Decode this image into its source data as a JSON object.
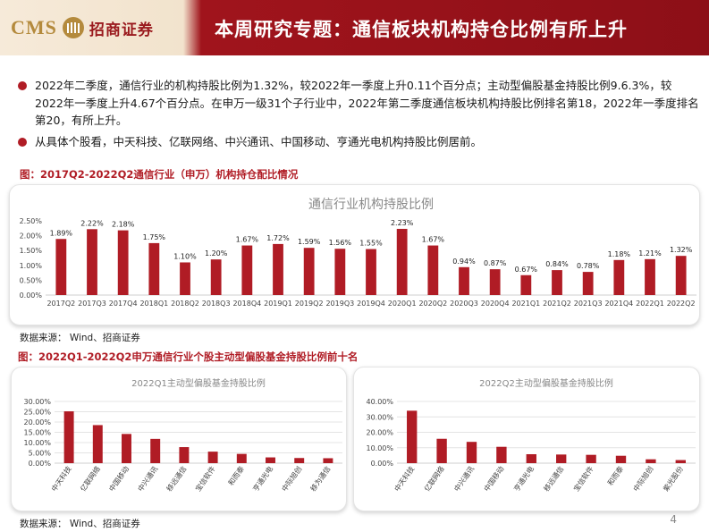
{
  "header": {
    "logo_text": "CMS",
    "logo_cn": "招商证券",
    "title": "本周研究专题：通信板块机构持仓比例有所上升"
  },
  "bullets": [
    "2022年二季度，通信行业的机构持股比例为1.32%，较2022年一季度上升0.11个百分点；主动型偏股基金持股比例9.6.3%，较2022年一季度上升4.67个百分点。在申万一级31个子行业中，2022年第二季度通信板块机构持股比例排名第18，2022年一季度排名第20，有所上升。",
    "从具体个股看，中天科技、亿联网络、中兴通讯、中国移动、亨通光电机构持股比例居前。"
  ],
  "figure1": {
    "caption": "图：2017Q2-2022Q2通信行业（申万）机构持仓配比情况",
    "source": "数据来源： Wind、招商证券"
  },
  "figure2": {
    "caption": "图：2022Q1-2022Q2申万通信行业个股主动型偏股基金持股比例前十名",
    "source": "数据来源： Wind、招商证券"
  },
  "page_number": "4",
  "colors": {
    "accent": "#b01c25",
    "header_red": "#8d0f17",
    "gold": "#b48a3c"
  },
  "chart_data": [
    {
      "type": "bar",
      "title": "通信行业机构持股比例",
      "categories": [
        "2017Q2",
        "2017Q3",
        "2017Q4",
        "2018Q1",
        "2018Q2",
        "2018Q3",
        "2018Q4",
        "2019Q1",
        "2019Q2",
        "2019Q3",
        "2019Q4",
        "2020Q1",
        "2020Q2",
        "2020Q3",
        "2020Q4",
        "2021Q1",
        "2021Q2",
        "2021Q3",
        "2021Q4",
        "2022Q1",
        "2022Q2"
      ],
      "values": [
        1.89,
        2.22,
        2.18,
        1.75,
        1.1,
        1.2,
        1.67,
        1.72,
        1.59,
        1.56,
        1.55,
        2.23,
        1.67,
        0.94,
        0.87,
        0.67,
        0.84,
        0.78,
        1.18,
        1.21,
        1.32
      ],
      "data_labels": [
        "1.89%",
        "2.22%",
        "2.18%",
        "1.75%",
        "1.10%",
        "1.20%",
        "1.67%",
        "1.72%",
        "1.59%",
        "1.56%",
        "1.55%",
        "2.23%",
        "1.67%",
        "0.94%",
        "0.87%",
        "0.67%",
        "0.84%",
        "0.78%",
        "1.18%",
        "1.21%",
        "1.32%"
      ],
      "y_ticks": [
        "0.00%",
        "0.50%",
        "1.00%",
        "1.50%",
        "2.00%",
        "2.50%"
      ],
      "ylim": [
        0,
        2.5
      ],
      "grid": false
    },
    {
      "type": "bar",
      "title": "2022Q1主动型偏股基金持股比例",
      "categories": [
        "中天科技",
        "亿联网络",
        "中国移动",
        "中兴通讯",
        "移远通信",
        "宝信软件",
        "和而泰",
        "亨通光电",
        "中际旭创",
        "移为通信"
      ],
      "values": [
        25.2,
        18.5,
        14.2,
        11.8,
        7.8,
        5.6,
        4.5,
        2.8,
        2.5,
        2.4
      ],
      "y_ticks": [
        "0.00%",
        "5.00%",
        "10.00%",
        "15.00%",
        "20.00%",
        "25.00%",
        "30.00%"
      ],
      "ylim": [
        0,
        30
      ],
      "grid": true
    },
    {
      "type": "bar",
      "title": "2022Q2主动型偏股基金持股比例",
      "categories": [
        "中天科技",
        "亿联网络",
        "中兴通讯",
        "中国移动",
        "亨通光电",
        "移远通信",
        "宝信软件",
        "和而泰",
        "中际旭创",
        "紫光股份"
      ],
      "values": [
        34.0,
        15.8,
        13.8,
        10.6,
        5.8,
        5.6,
        5.4,
        4.8,
        2.5,
        2.0
      ],
      "y_ticks": [
        "0.00%",
        "10.00%",
        "20.00%",
        "30.00%",
        "40.00%"
      ],
      "ylim": [
        0,
        40
      ],
      "grid": true
    }
  ]
}
